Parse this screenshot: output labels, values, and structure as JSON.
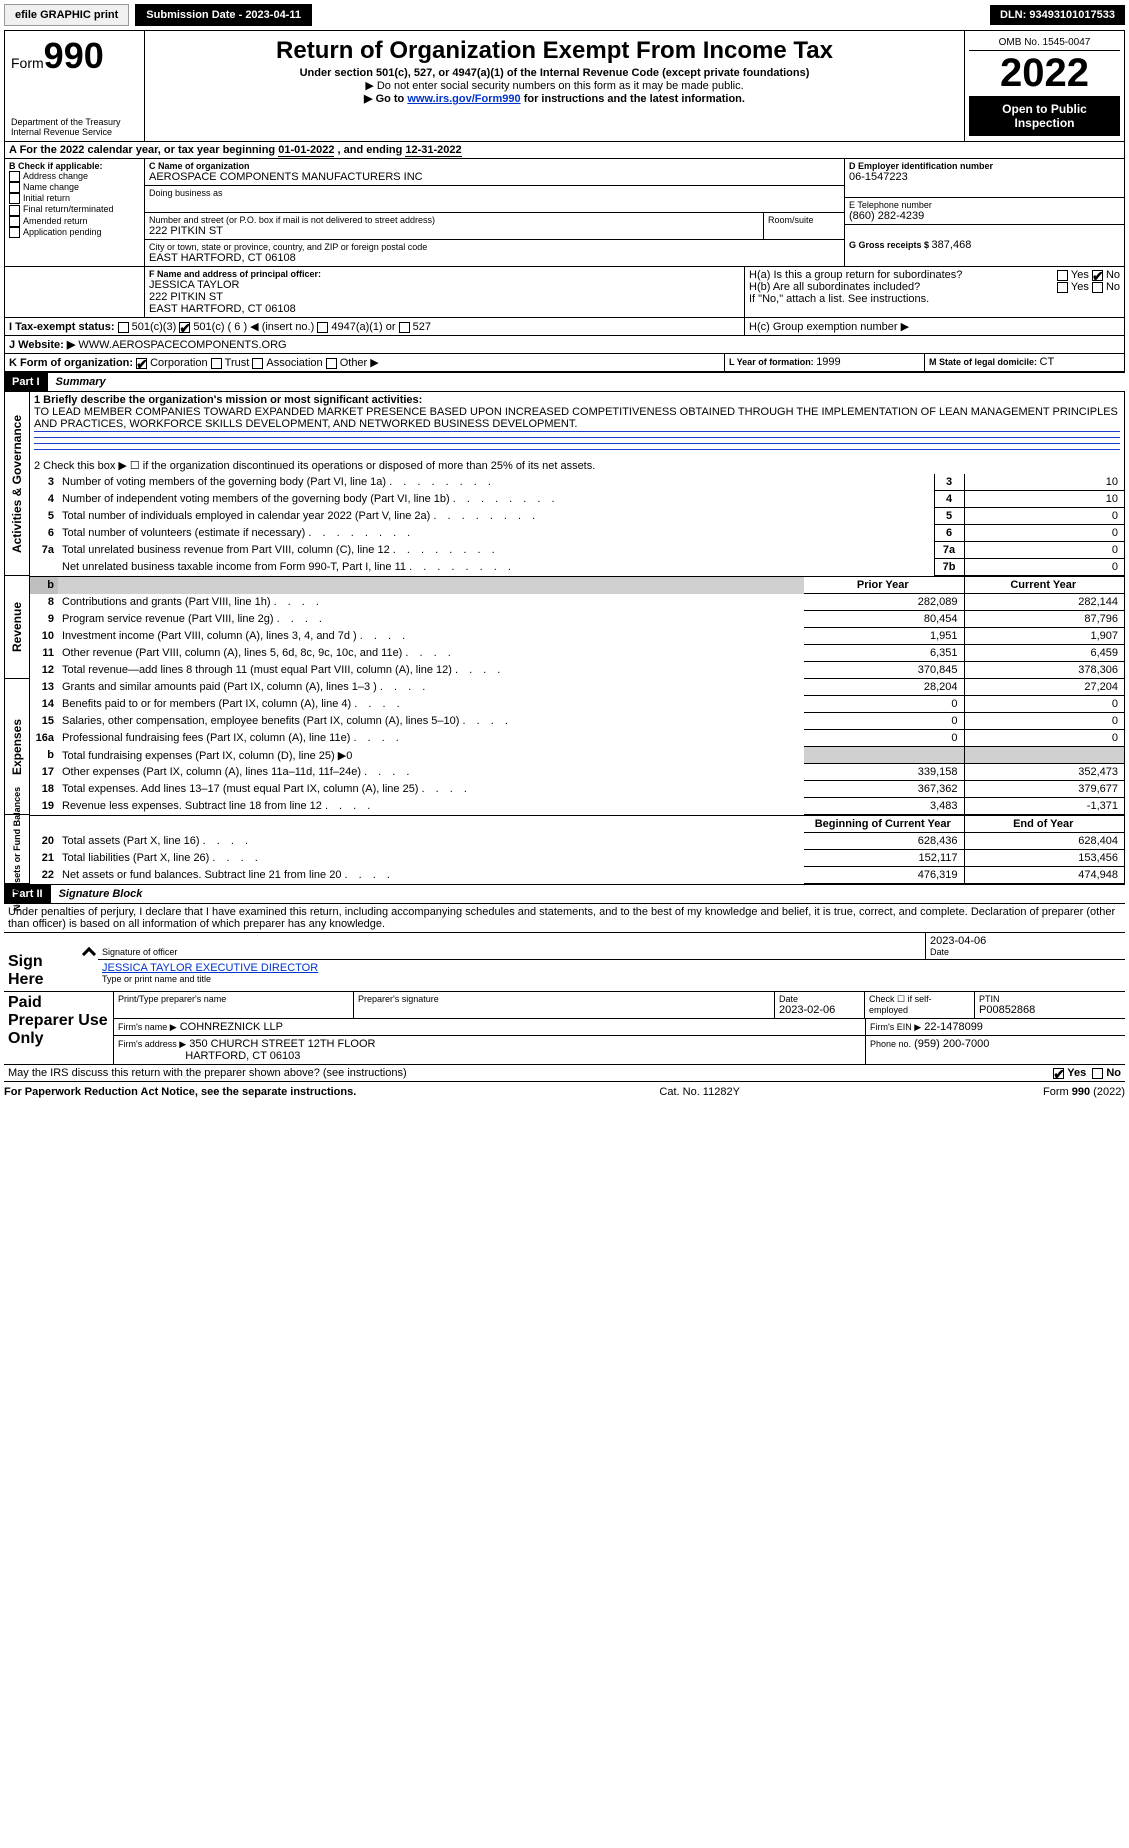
{
  "topbar": {
    "efile": "efile GRAPHIC print",
    "submission_label": "Submission Date - 2023-04-11",
    "dln": "DLN: 93493101017533"
  },
  "header": {
    "form_label": "Form",
    "form_number": "990",
    "title": "Return of Organization Exempt From Income Tax",
    "subtitle": "Under section 501(c), 527, or 4947(a)(1) of the Internal Revenue Code (except private foundations)",
    "note1": "▶ Do not enter social security numbers on this form as it may be made public.",
    "note2_prefix": "▶ Go to ",
    "note2_link": "www.irs.gov/Form990",
    "note2_suffix": " for instructions and the latest information.",
    "dept": "Department of the Treasury",
    "irs": "Internal Revenue Service",
    "omb": "OMB No. 1545-0047",
    "year": "2022",
    "open": "Open to Public Inspection"
  },
  "periodA": {
    "label_prefix": "A For the 2022 calendar year, or tax year beginning ",
    "begin": "01-01-2022",
    "mid": " , and ending ",
    "end": "12-31-2022"
  },
  "sectionB": {
    "label": "B Check if applicable:",
    "items": [
      "Address change",
      "Name change",
      "Initial return",
      "Final return/terminated",
      "Amended return",
      "Application pending"
    ]
  },
  "sectionC": {
    "name_label": "C Name of organization",
    "name": "AEROSPACE COMPONENTS MANUFACTURERS INC",
    "dba_label": "Doing business as",
    "dba": "",
    "street_label": "Number and street (or P.O. box if mail is not delivered to street address)",
    "room_label": "Room/suite",
    "street": "222 PITKIN ST",
    "city_label": "City or town, state or province, country, and ZIP or foreign postal code",
    "city": "EAST HARTFORD, CT  06108"
  },
  "sectionD": {
    "label": "D Employer identification number",
    "value": "06-1547223"
  },
  "sectionE": {
    "label": "E Telephone number",
    "value": "(860) 282-4239"
  },
  "sectionG": {
    "label": "G Gross receipts $ ",
    "value": "387,468"
  },
  "sectionF": {
    "label": "F Name and address of principal officer:",
    "name": "JESSICA TAYLOR",
    "street": "222 PITKIN ST",
    "city": "EAST HARTFORD, CT  06108"
  },
  "sectionH": {
    "a_label": "H(a)  Is this a group return for subordinates?",
    "b_label": "H(b)  Are all subordinates included?",
    "b_note": "If \"No,\" attach a list. See instructions.",
    "c_label": "H(c)  Group exemption number ▶",
    "yes": "Yes",
    "no": "No",
    "a_yes": false,
    "a_no": true,
    "b_yes": false,
    "b_no": false
  },
  "sectionI": {
    "label": "I  Tax-exempt status:",
    "c3": "501(c)(3)",
    "c": "501(c) ( ",
    "cnum": "6",
    "cend": " ) ◀ (insert no.)",
    "a1": "4947(a)(1) or",
    "s527": "527"
  },
  "sectionJ": {
    "label": "J  Website: ▶",
    "value": "WWW.AEROSPACECOMPONENTS.ORG"
  },
  "sectionK": {
    "label": "K Form of organization:",
    "corp": "Corporation",
    "trust": "Trust",
    "assoc": "Association",
    "other": "Other ▶"
  },
  "sectionL": {
    "label": "L Year of formation: ",
    "value": "1999"
  },
  "sectionM": {
    "label": "M State of legal domicile: ",
    "value": "CT"
  },
  "part1": {
    "part": "Part I",
    "title": "Summary",
    "line1_label": "1  Briefly describe the organization's mission or most significant activities:",
    "line1_text": "TO LEAD MEMBER COMPANIES TOWARD EXPANDED MARKET PRESENCE BASED UPON INCREASED COMPETITIVENESS OBTAINED THROUGH THE IMPLEMENTATION OF LEAN MANAGEMENT PRINCIPLES AND PRACTICES, WORKFORCE SKILLS DEVELOPMENT, AND NETWORKED BUSINESS DEVELOPMENT.",
    "line2": "2   Check this box ▶ ☐ if the organization discontinued its operations or disposed of more than 25% of its net assets.",
    "rows_ag": [
      {
        "n": "3",
        "desc": "Number of voting members of the governing body (Part VI, line 1a)",
        "box": "3",
        "val": "10"
      },
      {
        "n": "4",
        "desc": "Number of independent voting members of the governing body (Part VI, line 1b)",
        "box": "4",
        "val": "10"
      },
      {
        "n": "5",
        "desc": "Total number of individuals employed in calendar year 2022 (Part V, line 2a)",
        "box": "5",
        "val": "0"
      },
      {
        "n": "6",
        "desc": "Total number of volunteers (estimate if necessary)",
        "box": "6",
        "val": "0"
      },
      {
        "n": "7a",
        "desc": "Total unrelated business revenue from Part VIII, column (C), line 12",
        "box": "7a",
        "val": "0"
      },
      {
        "n": "",
        "desc": "Net unrelated business taxable income from Form 990-T, Part I, line 11",
        "box": "7b",
        "val": "0"
      }
    ],
    "prior_year": "Prior Year",
    "current_year": "Current Year",
    "rev_rows": [
      {
        "n": "8",
        "desc": "Contributions and grants (Part VIII, line 1h)",
        "py": "282,089",
        "cy": "282,144"
      },
      {
        "n": "9",
        "desc": "Program service revenue (Part VIII, line 2g)",
        "py": "80,454",
        "cy": "87,796"
      },
      {
        "n": "10",
        "desc": "Investment income (Part VIII, column (A), lines 3, 4, and 7d )",
        "py": "1,951",
        "cy": "1,907"
      },
      {
        "n": "11",
        "desc": "Other revenue (Part VIII, column (A), lines 5, 6d, 8c, 9c, 10c, and 11e)",
        "py": "6,351",
        "cy": "6,459"
      },
      {
        "n": "12",
        "desc": "Total revenue—add lines 8 through 11 (must equal Part VIII, column (A), line 12)",
        "py": "370,845",
        "cy": "378,306"
      }
    ],
    "exp_rows": [
      {
        "n": "13",
        "desc": "Grants and similar amounts paid (Part IX, column (A), lines 1–3 )",
        "py": "28,204",
        "cy": "27,204"
      },
      {
        "n": "14",
        "desc": "Benefits paid to or for members (Part IX, column (A), line 4)",
        "py": "0",
        "cy": "0"
      },
      {
        "n": "15",
        "desc": "Salaries, other compensation, employee benefits (Part IX, column (A), lines 5–10)",
        "py": "0",
        "cy": "0"
      },
      {
        "n": "16a",
        "desc": "Professional fundraising fees (Part IX, column (A), line 11e)",
        "py": "0",
        "cy": "0"
      }
    ],
    "exp_b": {
      "n": "b",
      "desc": "Total fundraising expenses (Part IX, column (D), line 25) ▶",
      "val": "0"
    },
    "exp_rows2": [
      {
        "n": "17",
        "desc": "Other expenses (Part IX, column (A), lines 11a–11d, 11f–24e)",
        "py": "339,158",
        "cy": "352,473"
      },
      {
        "n": "18",
        "desc": "Total expenses. Add lines 13–17 (must equal Part IX, column (A), line 25)",
        "py": "367,362",
        "cy": "379,677"
      },
      {
        "n": "19",
        "desc": "Revenue less expenses. Subtract line 18 from line 12",
        "py": "3,483",
        "cy": "-1,371"
      }
    ],
    "boy": "Beginning of Current Year",
    "eoy": "End of Year",
    "na_rows": [
      {
        "n": "20",
        "desc": "Total assets (Part X, line 16)",
        "py": "628,436",
        "cy": "628,404"
      },
      {
        "n": "21",
        "desc": "Total liabilities (Part X, line 26)",
        "py": "152,117",
        "cy": "153,456"
      },
      {
        "n": "22",
        "desc": "Net assets or fund balances. Subtract line 21 from line 20",
        "py": "476,319",
        "cy": "474,948"
      }
    ],
    "side_ag": "Activities & Governance",
    "side_rev": "Revenue",
    "side_exp": "Expenses",
    "side_na": "Net Assets or Fund Balances"
  },
  "part2": {
    "part": "Part II",
    "title": "Signature Block",
    "decl": "Under penalties of perjury, I declare that I have examined this return, including accompanying schedules and statements, and to the best of my knowledge and belief, it is true, correct, and complete. Declaration of preparer (other than officer) is based on all information of which preparer has any knowledge.",
    "sign_here": "Sign Here",
    "sig_officer": "Signature of officer",
    "date": "Date",
    "sig_date": "2023-04-06",
    "officer_name": "JESSICA TAYLOR  EXECUTIVE DIRECTOR",
    "type_label": "Type or print name and title",
    "paid": "Paid Preparer Use Only",
    "pt_name_label": "Print/Type preparer's name",
    "pt_sig_label": "Preparer's signature",
    "pt_date_label": "Date",
    "pt_date": "2023-02-06",
    "pt_check_label": "Check ☐ if self-employed",
    "ptin_label": "PTIN",
    "ptin": "P00852868",
    "firm_name_label": "Firm's name    ▶",
    "firm_name": "COHNREZNICK LLP",
    "firm_ein_label": "Firm's EIN ▶",
    "firm_ein": "22-1478099",
    "firm_addr_label": "Firm's address ▶",
    "firm_addr1": "350 CHURCH STREET 12TH FLOOR",
    "firm_addr2": "HARTFORD, CT  06103",
    "phone_label": "Phone no.",
    "phone": "(959) 200-7000",
    "discuss": "May the IRS discuss this return with the preparer shown above? (see instructions)",
    "yes": "Yes",
    "no": "No"
  },
  "footer": {
    "pra": "For Paperwork Reduction Act Notice, see the separate instructions.",
    "cat": "Cat. No. 11282Y",
    "form": "Form 990 (2022)"
  }
}
